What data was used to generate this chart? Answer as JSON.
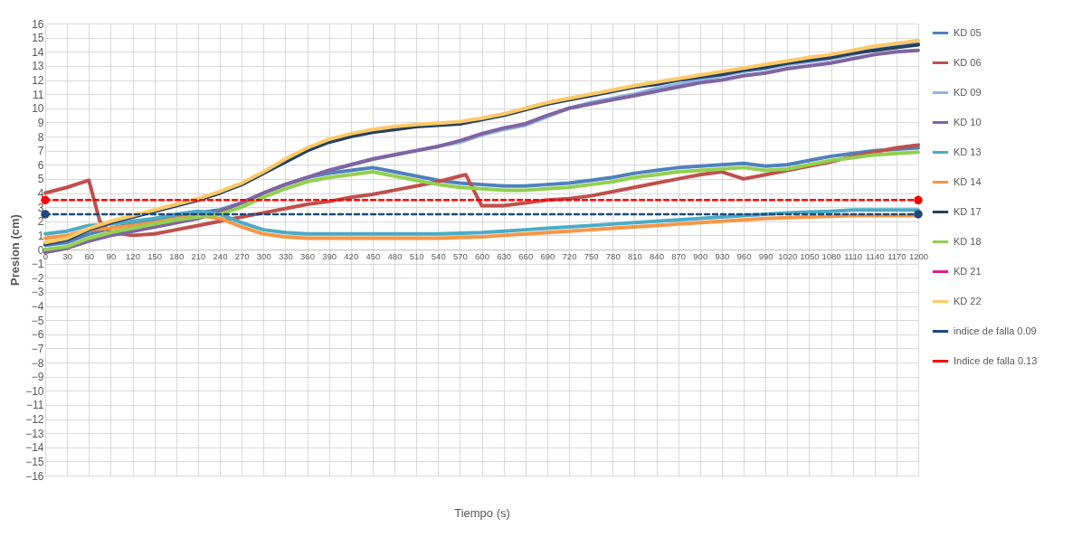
{
  "chart_data": {
    "type": "line",
    "xlabel": "Tiempo (s)",
    "ylabel": "Presion (cm)",
    "x": [
      0,
      30,
      60,
      90,
      120,
      150,
      180,
      210,
      240,
      270,
      300,
      330,
      360,
      390,
      420,
      450,
      480,
      510,
      540,
      570,
      600,
      630,
      660,
      690,
      720,
      750,
      780,
      810,
      840,
      870,
      900,
      930,
      960,
      990,
      1020,
      1050,
      1080,
      1110,
      1140,
      1170,
      1200
    ],
    "xlim": [
      0,
      1200
    ],
    "xticks": [
      0,
      30,
      60,
      90,
      120,
      150,
      180,
      210,
      240,
      270,
      300,
      330,
      360,
      390,
      420,
      450,
      480,
      510,
      540,
      570,
      600,
      630,
      660,
      690,
      720,
      750,
      780,
      810,
      840,
      870,
      900,
      930,
      960,
      990,
      1020,
      1050,
      1080,
      1110,
      1140,
      1170,
      1200
    ],
    "ylim": [
      -16,
      16
    ],
    "yticks": [
      -16,
      -15,
      -14,
      -13,
      -12,
      -11,
      -10,
      -9,
      -8,
      -7,
      -6,
      -5,
      -4,
      -3,
      -2,
      -1,
      0,
      1,
      2,
      3,
      4,
      5,
      6,
      7,
      8,
      9,
      10,
      11,
      12,
      13,
      14,
      15,
      16
    ],
    "grid": true,
    "legend": "right",
    "series": [
      {
        "name": "KD 05",
        "color": "#4f81bd",
        "values": [
          0.3,
          0.5,
          1.1,
          1.5,
          1.8,
          2.1,
          2.4,
          2.6,
          2.8,
          3.3,
          4.0,
          4.6,
          5.1,
          5.4,
          5.6,
          5.8,
          5.5,
          5.2,
          4.9,
          4.7,
          4.6,
          4.5,
          4.5,
          4.6,
          4.7,
          4.9,
          5.1,
          5.4,
          5.6,
          5.8,
          5.9,
          6.0,
          6.1,
          5.9,
          6.0,
          6.3,
          6.6,
          6.8,
          7.0,
          7.1,
          7.2
        ]
      },
      {
        "name": "KD 06",
        "color": "#c0504d",
        "x": [
          0,
          30,
          60,
          75,
          90,
          120,
          150,
          180,
          210,
          240,
          270,
          300,
          330,
          360,
          390,
          420,
          450,
          480,
          510,
          540,
          570,
          578,
          600,
          630,
          660,
          690,
          720,
          750,
          780,
          810,
          840,
          870,
          900,
          930,
          960,
          990,
          1020,
          1050,
          1080,
          1110,
          1140,
          1170,
          1200
        ],
        "values": [
          4.0,
          4.4,
          4.9,
          2.0,
          1.2,
          1.0,
          1.1,
          1.4,
          1.7,
          2.0,
          2.3,
          2.6,
          2.9,
          3.2,
          3.4,
          3.7,
          3.9,
          4.2,
          4.5,
          4.8,
          5.2,
          5.3,
          3.1,
          3.1,
          3.3,
          3.5,
          3.6,
          3.8,
          4.1,
          4.4,
          4.7,
          5.0,
          5.3,
          5.5,
          5.0,
          5.3,
          5.6,
          5.9,
          6.2,
          6.6,
          6.9,
          7.2,
          7.4
        ]
      },
      {
        "name": "KD 09",
        "color": "#8db3e2",
        "values": [
          -0.2,
          0.1,
          0.6,
          1.0,
          1.3,
          1.6,
          1.9,
          2.2,
          2.7,
          3.3,
          4.0,
          4.6,
          5.1,
          5.6,
          6.0,
          6.4,
          6.7,
          7.0,
          7.3,
          7.6,
          8.1,
          8.5,
          8.8,
          9.4,
          10.0,
          10.4,
          10.7,
          11.0,
          11.4,
          11.7,
          12.0,
          12.3,
          12.6,
          12.8,
          13.1,
          13.3,
          13.5,
          13.8,
          14.2,
          14.4,
          14.6
        ]
      },
      {
        "name": "KD 10",
        "color": "#8064a2",
        "values": [
          -0.2,
          0.1,
          0.6,
          1.0,
          1.3,
          1.6,
          1.9,
          2.2,
          2.7,
          3.3,
          4.0,
          4.6,
          5.1,
          5.6,
          6.0,
          6.4,
          6.7,
          7.0,
          7.3,
          7.7,
          8.2,
          8.6,
          8.9,
          9.5,
          10.0,
          10.3,
          10.6,
          10.9,
          11.2,
          11.5,
          11.8,
          12.0,
          12.3,
          12.5,
          12.8,
          13.0,
          13.2,
          13.5,
          13.8,
          14.0,
          14.1
        ]
      },
      {
        "name": "KD 13",
        "color": "#4bacc6",
        "values": [
          1.1,
          1.3,
          1.7,
          1.8,
          2.0,
          2.2,
          2.5,
          2.7,
          2.5,
          1.9,
          1.4,
          1.2,
          1.1,
          1.1,
          1.1,
          1.1,
          1.1,
          1.1,
          1.1,
          1.15,
          1.2,
          1.3,
          1.4,
          1.5,
          1.6,
          1.7,
          1.8,
          1.9,
          2.0,
          2.1,
          2.2,
          2.3,
          2.4,
          2.5,
          2.6,
          2.65,
          2.7,
          2.8,
          2.8,
          2.8,
          2.8
        ]
      },
      {
        "name": "KD 14",
        "color": "#f79646",
        "values": [
          0.8,
          1.0,
          1.4,
          1.5,
          1.7,
          1.9,
          2.2,
          2.4,
          2.2,
          1.6,
          1.1,
          0.9,
          0.8,
          0.8,
          0.8,
          0.8,
          0.8,
          0.8,
          0.8,
          0.85,
          0.9,
          1.0,
          1.1,
          1.2,
          1.3,
          1.4,
          1.5,
          1.6,
          1.7,
          1.8,
          1.9,
          2.0,
          2.1,
          2.2,
          2.25,
          2.3,
          2.35,
          2.4,
          2.4,
          2.4,
          2.4
        ]
      },
      {
        "name": "KD 17",
        "color": "#254061",
        "values": [
          0.4,
          0.7,
          1.4,
          1.9,
          2.3,
          2.7,
          3.1,
          3.5,
          4.0,
          4.6,
          5.4,
          6.2,
          7.0,
          7.6,
          8.0,
          8.3,
          8.5,
          8.7,
          8.8,
          8.9,
          9.2,
          9.5,
          9.9,
          10.3,
          10.6,
          10.9,
          11.2,
          11.5,
          11.7,
          12.0,
          12.2,
          12.4,
          12.7,
          12.9,
          13.2,
          13.4,
          13.6,
          13.9,
          14.1,
          14.3,
          14.5
        ]
      },
      {
        "name": "KD 18",
        "color": "#92d050",
        "values": [
          0.0,
          0.2,
          0.8,
          1.2,
          1.5,
          1.8,
          2.1,
          2.3,
          2.5,
          3.0,
          3.7,
          4.3,
          4.8,
          5.1,
          5.3,
          5.5,
          5.2,
          4.9,
          4.6,
          4.4,
          4.3,
          4.2,
          4.2,
          4.3,
          4.4,
          4.6,
          4.8,
          5.1,
          5.3,
          5.5,
          5.6,
          5.7,
          5.8,
          5.6,
          5.7,
          6.0,
          6.3,
          6.5,
          6.7,
          6.8,
          6.9
        ]
      },
      {
        "name": "KD 21",
        "color": "#e0218a",
        "values": [
          null,
          null,
          null,
          null,
          null,
          null,
          null,
          null,
          null,
          null,
          null,
          null,
          null,
          null,
          null,
          null,
          null,
          null,
          null,
          null,
          null,
          null,
          null,
          null,
          null,
          null,
          null,
          null,
          null,
          null,
          null,
          null,
          null,
          null,
          null,
          null,
          null,
          null,
          null,
          null,
          null
        ]
      },
      {
        "name": "KD 22",
        "color": "#fcc966",
        "values": [
          0.5,
          0.8,
          1.5,
          2.0,
          2.4,
          2.8,
          3.2,
          3.6,
          4.1,
          4.7,
          5.5,
          6.4,
          7.2,
          7.8,
          8.2,
          8.5,
          8.7,
          8.85,
          8.95,
          9.05,
          9.3,
          9.6,
          10.0,
          10.4,
          10.7,
          11.0,
          11.3,
          11.6,
          11.85,
          12.1,
          12.35,
          12.6,
          12.85,
          13.1,
          13.35,
          13.6,
          13.8,
          14.1,
          14.4,
          14.6,
          14.8
        ]
      },
      {
        "name": "indice de falla 0.09",
        "color": "#1f497d",
        "x": [
          0,
          1200
        ],
        "values": [
          2.5,
          2.5
        ],
        "line_style": "dashed",
        "marker": "circle"
      },
      {
        "name": "Indice de falla 0.13",
        "color": "#ff0000",
        "x": [
          0,
          1200
        ],
        "values": [
          3.5,
          3.5
        ],
        "line_style": "dashed",
        "marker": "circle"
      }
    ]
  }
}
